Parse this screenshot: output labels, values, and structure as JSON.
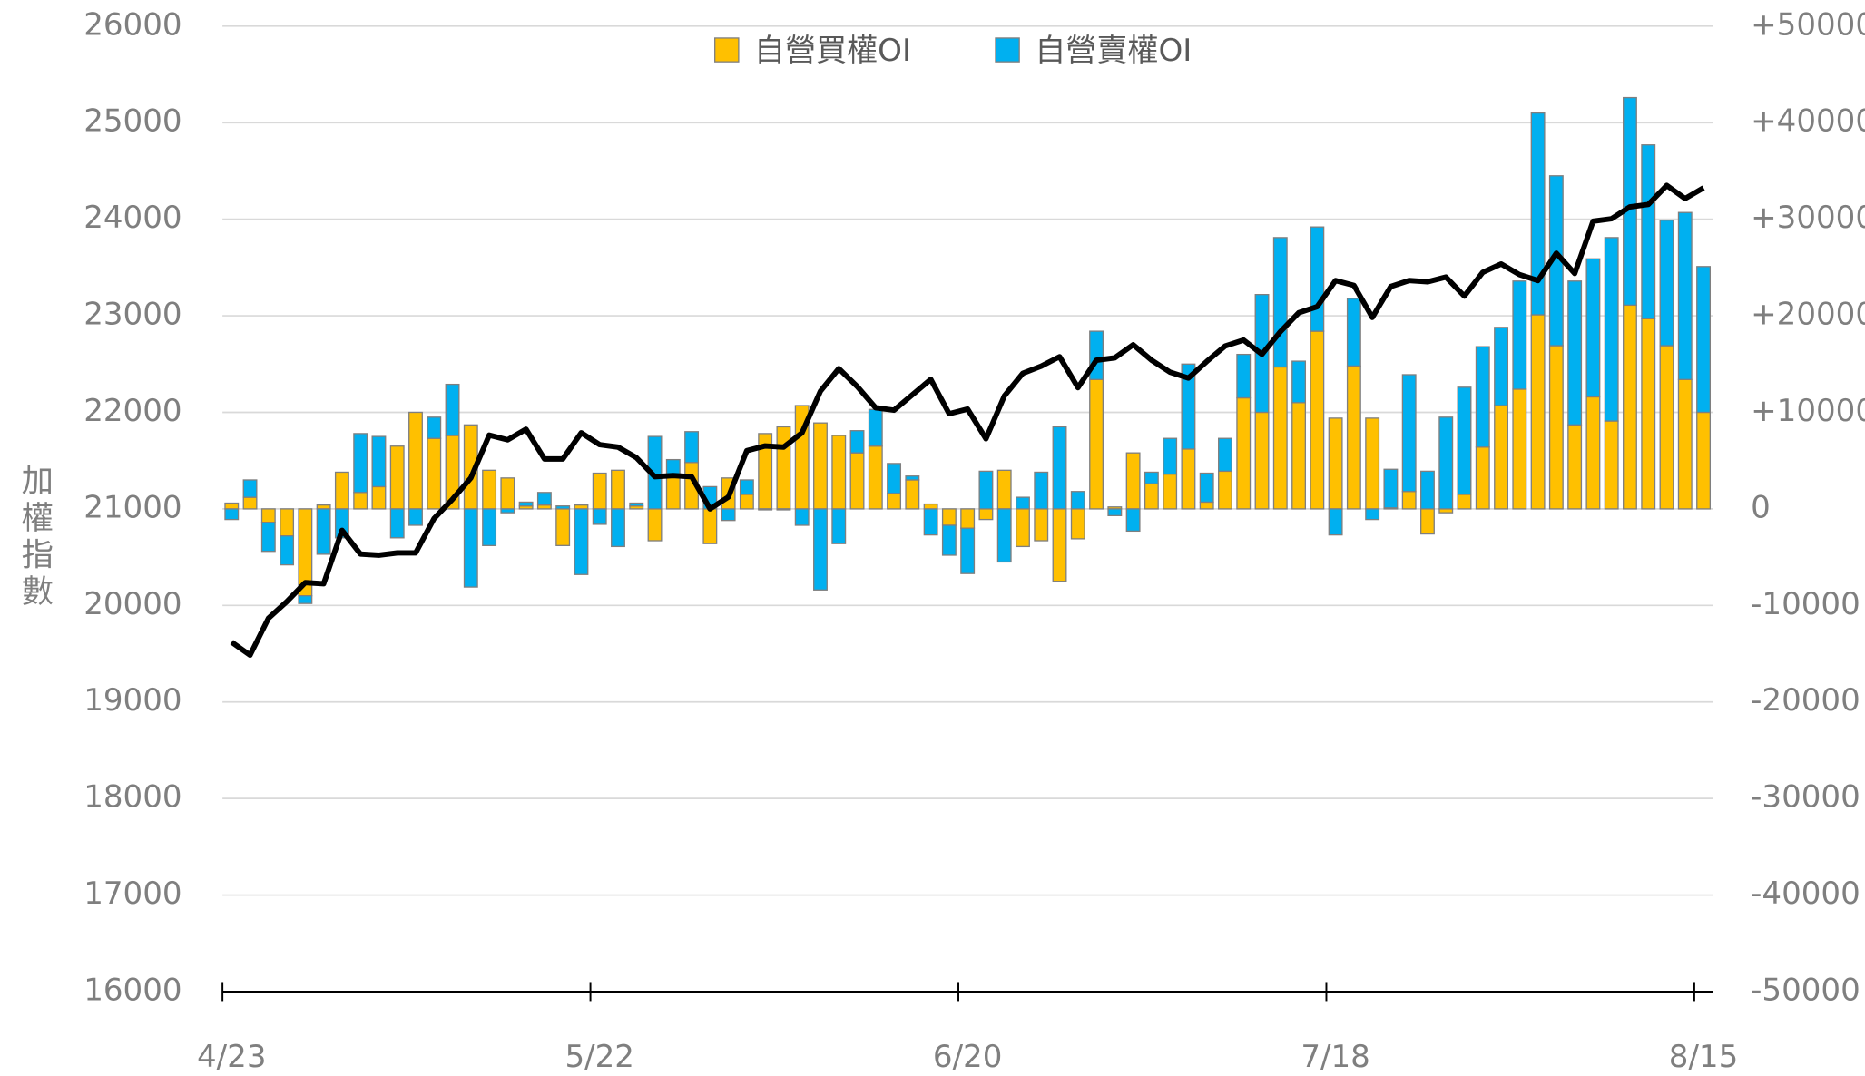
{
  "chart_data": {
    "type": "bar",
    "y_label": "加權指數",
    "categories": [
      "4/23",
      null,
      null,
      null,
      null,
      null,
      null,
      null,
      null,
      null,
      null,
      null,
      null,
      null,
      null,
      null,
      null,
      null,
      null,
      null,
      "5/22",
      null,
      null,
      null,
      null,
      null,
      null,
      null,
      null,
      null,
      null,
      null,
      null,
      null,
      null,
      null,
      null,
      null,
      null,
      null,
      "6/20",
      null,
      null,
      null,
      null,
      null,
      null,
      null,
      null,
      null,
      null,
      null,
      null,
      null,
      null,
      null,
      null,
      null,
      null,
      null,
      "7/18",
      null,
      null,
      null,
      null,
      null,
      null,
      null,
      null,
      null,
      null,
      null,
      null,
      null,
      null,
      null,
      null,
      null,
      null,
      null,
      "8/15"
    ],
    "ylim": [
      16000,
      26000
    ],
    "yticks": [
      16000,
      17000,
      18000,
      19000,
      20000,
      21000,
      22000,
      23000,
      24000,
      25000,
      26000
    ],
    "y2lim": [
      -50000,
      50000
    ],
    "y2ticks": [
      -50000,
      -40000,
      -30000,
      -20000,
      -10000,
      0,
      {
        "value": 10000,
        "label": "+10000"
      },
      {
        "value": 20000,
        "label": "+20000"
      },
      {
        "value": 30000,
        "label": "+30000"
      },
      {
        "value": 40000,
        "label": "+40000"
      },
      {
        "value": 50000,
        "label": "+50000"
      }
    ],
    "grid": true,
    "legend": "top",
    "stacked": true,
    "series": [
      {
        "name": "自營買權OI",
        "type": "bar",
        "axis": "y2",
        "color": "#ffc000",
        "values": [
          600,
          1200,
          -1400,
          -2800,
          -9000,
          400,
          3800,
          1700,
          2300,
          6500,
          10000,
          7300,
          7600,
          8700,
          4000,
          3200,
          300,
          400,
          -3800,
          400,
          3700,
          4000,
          300,
          -3300,
          3400,
          4800,
          -3600,
          3200,
          1500,
          7800,
          8500,
          10700,
          8900,
          7600,
          5800,
          6500,
          1600,
          3000,
          500,
          -1700,
          -2000,
          -1100,
          4000,
          -3900,
          -3300,
          -7500,
          -3100,
          13400,
          200,
          5800,
          2600,
          3600,
          6200,
          700,
          3900,
          11500,
          10000,
          14700,
          11000,
          18400,
          9400,
          14800,
          9400,
          100,
          1800,
          -2600,
          -400,
          1500,
          6400,
          10700,
          12400,
          20100,
          16900,
          8700,
          11600,
          9100,
          21100,
          19700,
          16900,
          13400,
          10000
        ]
      },
      {
        "name": "自營賣權OI",
        "type": "bar",
        "axis": "y2",
        "color": "#00b0f0",
        "values": [
          -1100,
          1800,
          -3000,
          -3000,
          -800,
          -4700,
          -3000,
          6100,
          5200,
          -3000,
          -1700,
          2200,
          5300,
          -8100,
          -3800,
          -400,
          400,
          1300,
          300,
          -6800,
          -1600,
          -3900,
          300,
          7500,
          1700,
          3200,
          2300,
          -1200,
          1500,
          -100,
          -100,
          -1700,
          -8400,
          -3600,
          2300,
          3800,
          3100,
          400,
          -2700,
          -3100,
          -4700,
          3900,
          -5500,
          1200,
          3800,
          8500,
          1800,
          5000,
          -700,
          -2300,
          1200,
          3700,
          8800,
          3000,
          3400,
          4500,
          12200,
          13400,
          4300,
          10800,
          -2700,
          7000,
          -1100,
          4000,
          12100,
          3900,
          9500,
          11100,
          10400,
          8100,
          11200,
          20900,
          17600,
          14900,
          14300,
          19000,
          21500,
          18000,
          13000,
          17300,
          15100
        ]
      },
      {
        "type": "line",
        "axis": "y",
        "color": "#000000",
        "values": [
          19620,
          19485,
          19867,
          20040,
          20236,
          20224,
          20778,
          20532,
          20520,
          20544,
          20544,
          20900,
          21099,
          21320,
          21764,
          21715,
          21825,
          21517,
          21517,
          21788,
          21665,
          21640,
          21530,
          21333,
          21345,
          21333,
          21000,
          21123,
          21603,
          21652,
          21640,
          21788,
          22219,
          22453,
          22268,
          22047,
          22022,
          22182,
          22342,
          21985,
          22034,
          21726,
          22170,
          22404,
          22478,
          22576,
          22256,
          22540,
          22564,
          22700,
          22540,
          22416,
          22355,
          22527,
          22687,
          22749,
          22601,
          22835,
          23032,
          23094,
          23365,
          23315,
          22983,
          23303,
          23365,
          23352,
          23401,
          23204,
          23450,
          23537,
          23426,
          23365,
          23648,
          23438,
          23980,
          24005,
          24128,
          24153,
          24350,
          24214,
          24325
        ]
      }
    ]
  }
}
